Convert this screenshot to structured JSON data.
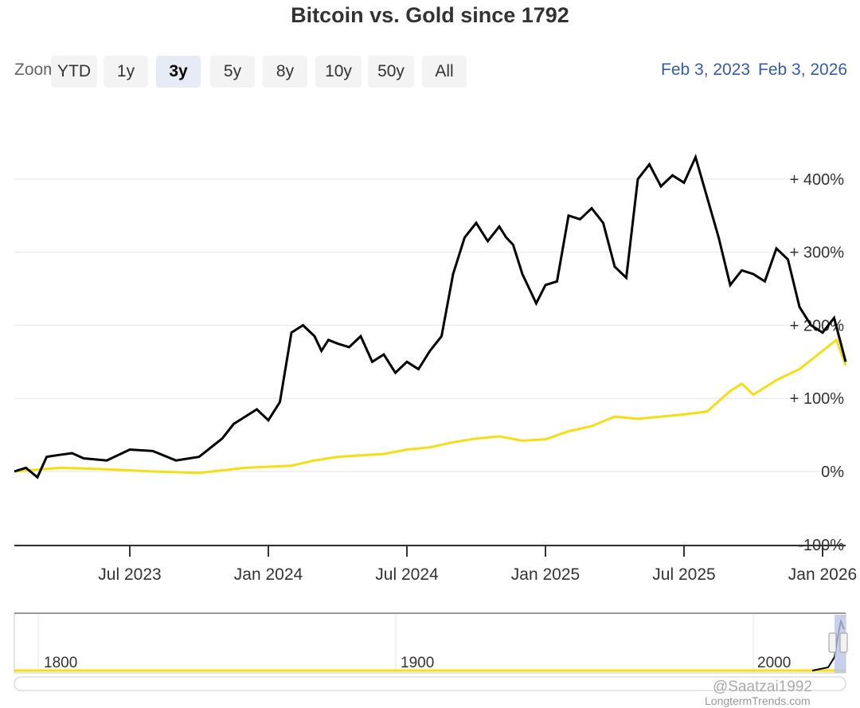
{
  "title": "Bitcoin vs. Gold since 1792",
  "zoom": {
    "label": "Zoom",
    "buttons": [
      "YTD",
      "1y",
      "3y",
      "5y",
      "8y",
      "10y",
      "50y",
      "All"
    ],
    "selected": "3y"
  },
  "range": {
    "from": "Feb 3, 2023",
    "to": "Feb 3, 2026"
  },
  "chart_data": {
    "type": "line",
    "title": "Bitcoin vs. Gold since 1792",
    "xlabel": "",
    "ylabel": "",
    "x_ticks": [
      "Jul 2023",
      "Jan 2024",
      "Jul 2024",
      "Jan 2025",
      "Jul 2025",
      "Jan 2026"
    ],
    "y_ticks": [
      "-100%",
      "0%",
      "+ 100%",
      "+ 200%",
      "+ 300%",
      "+ 400%"
    ],
    "ylim": [
      -100,
      450
    ],
    "x_unit": "months since Feb 2023",
    "xlim": [
      0,
      36
    ],
    "x_tick_positions": [
      5,
      11,
      17,
      23,
      29,
      35
    ],
    "series": [
      {
        "name": "Bitcoin",
        "color": "#000000",
        "x": [
          0,
          0.5,
          1,
          1.4,
          1.8,
          2.5,
          3,
          4,
          5,
          6,
          7,
          8,
          9,
          9.5,
          10,
          10.5,
          11,
          11.5,
          12,
          12.5,
          13,
          13.3,
          13.6,
          14,
          14.5,
          15,
          15.5,
          16,
          16.5,
          17,
          17.5,
          18,
          18.5,
          19,
          19.5,
          20,
          20.5,
          21,
          21.3,
          21.6,
          22,
          22.3,
          22.6,
          23,
          23.5,
          24,
          24.5,
          25,
          25.5,
          26,
          26.5,
          27,
          27.5,
          28,
          28.5,
          29,
          29.5,
          30,
          30.5,
          31,
          31.5,
          32,
          32.5,
          33,
          33.5,
          34,
          34.5,
          35,
          35.5,
          36
        ],
        "values": [
          0,
          5,
          -8,
          20,
          22,
          25,
          18,
          15,
          30,
          28,
          15,
          20,
          45,
          65,
          75,
          85,
          70,
          95,
          190,
          200,
          185,
          165,
          180,
          175,
          170,
          185,
          150,
          160,
          135,
          150,
          140,
          165,
          185,
          270,
          320,
          340,
          315,
          335,
          320,
          310,
          270,
          250,
          230,
          255,
          260,
          350,
          345,
          360,
          340,
          280,
          265,
          400,
          420,
          390,
          405,
          395,
          430,
          375,
          320,
          255,
          275,
          270,
          260,
          305,
          290,
          225,
          200,
          190,
          210,
          150
        ],
        "note": "values approximated from plot, percent change since Feb 2023"
      },
      {
        "name": "Gold",
        "color": "#f5de14",
        "x": [
          0,
          2,
          4,
          6,
          8,
          10,
          12,
          13,
          14,
          15,
          16,
          17,
          18,
          19,
          20,
          21,
          22,
          23,
          24,
          25,
          26,
          27,
          28,
          29,
          30,
          31,
          31.5,
          32,
          33,
          34,
          35,
          35.6,
          36
        ],
        "values": [
          0,
          5,
          3,
          0,
          -2,
          5,
          8,
          15,
          20,
          22,
          24,
          30,
          33,
          40,
          45,
          48,
          42,
          44,
          55,
          62,
          75,
          72,
          75,
          78,
          82,
          110,
          120,
          105,
          125,
          140,
          165,
          180,
          145
        ],
        "note": "values approximated from plot, percent change since Feb 2023"
      }
    ],
    "navigator": {
      "ticks": [
        "1800",
        "1900",
        "2000"
      ]
    }
  },
  "credits": {
    "watermark": "@Saatzai1992",
    "source": "LongtermTrends.com"
  }
}
